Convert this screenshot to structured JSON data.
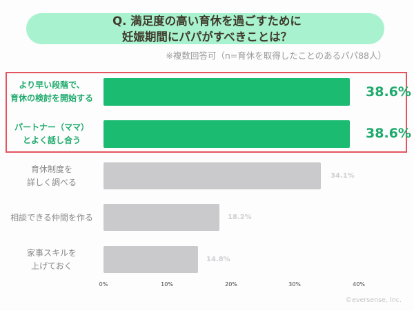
{
  "header": {
    "title_line1": "Q. 満足度の高い育休を過ごすために",
    "title_line2": "妊娠期間にパパがすべきことは？",
    "note": "※複数回答可（n=育休を取得したことのあるパパ88人）"
  },
  "colors": {
    "highlight": "#1bbb72",
    "other": "#cacacc",
    "box": "#e4545e",
    "pill": "#a8f2d0"
  },
  "footer": {
    "copyright": "©eversense, Inc."
  },
  "chart_data": {
    "type": "bar",
    "orientation": "horizontal",
    "title": "Q. 満足度の高い育休を過ごすために妊娠期間にパパがすべきことは？",
    "subtitle": "※複数回答可（n=育休を取得したことのあるパパ88人）",
    "categories": [
      "より早い段階で、育休の検討を開始する",
      "パートナー（ママ）とよく話し合う",
      "育休制度を詳しく調べる",
      "相談できる仲間を作る",
      "家事スキルを上げておく"
    ],
    "values": [
      38.6,
      38.6,
      34.1,
      18.2,
      14.8
    ],
    "xlim": [
      0,
      40
    ],
    "xticks": [
      "0%",
      "10%",
      "20%",
      "30%",
      "40%"
    ],
    "xlabel": "",
    "ylabel": "",
    "grid": false,
    "highlighted": [
      0,
      1
    ]
  },
  "rows": [
    {
      "l1": "より早い段階で、",
      "l2": "育休の検討を開始する",
      "value": "38.6%"
    },
    {
      "l1": "パートナー（ママ）",
      "l2": "とよく話し合う",
      "value": "38.6%"
    },
    {
      "l1": "育休制度を",
      "l2": "詳しく調べる",
      "value": "34.1%"
    },
    {
      "l1": "相談できる仲間を作る",
      "l2": "",
      "value": "18.2%"
    },
    {
      "l1": "家事スキルを",
      "l2": "上げておく",
      "value": "14.8%"
    }
  ],
  "ticks": [
    "0%",
    "10%",
    "20%",
    "30%",
    "40%"
  ]
}
